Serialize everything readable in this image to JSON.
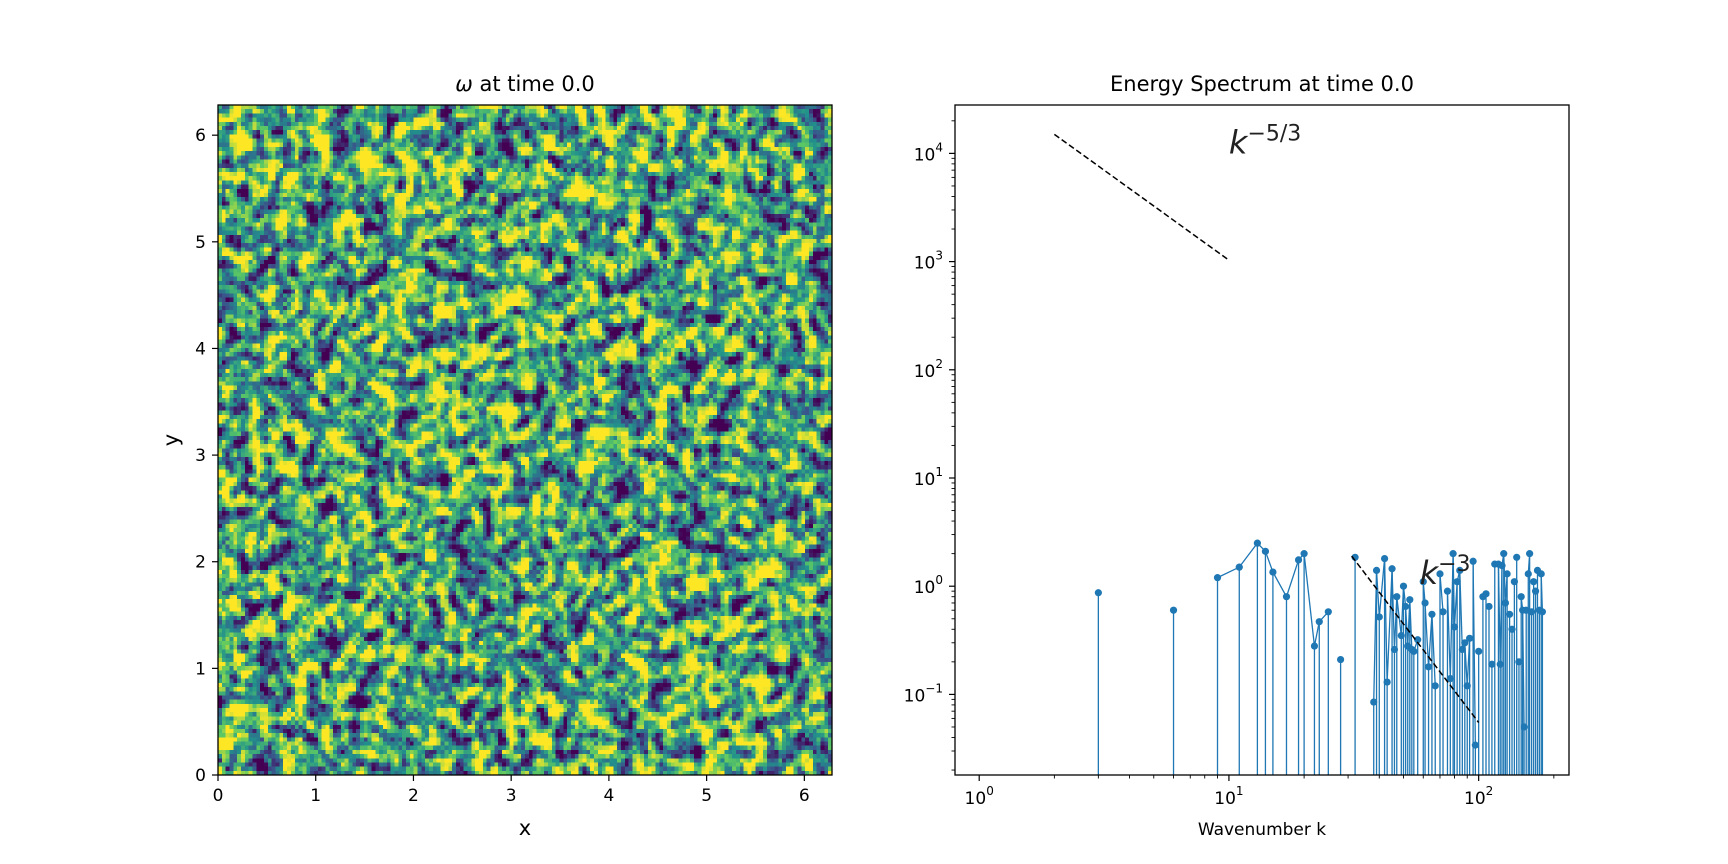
{
  "colors": {
    "series": "#1f77b4",
    "reference_line": "#000000",
    "viridis_low": "#3b528b",
    "viridis_mid": "#21918c",
    "viridis_high": "#c8e020"
  },
  "chart_data": [
    {
      "type": "heatmap",
      "title_symbol": "ω",
      "title_rest": " at time 0.0",
      "xlabel": "x",
      "ylabel": "y",
      "xlim": [
        0,
        6.283
      ],
      "ylim": [
        0,
        6.283
      ],
      "xticks": [
        0,
        1,
        2,
        3,
        4,
        5,
        6
      ],
      "yticks": [
        0,
        1,
        2,
        3,
        4,
        5,
        6
      ],
      "colormap": "viridis",
      "grid": false
    },
    {
      "type": "line",
      "title": "Energy Spectrum at time 0.0",
      "xlabel": "Wavenumber k",
      "ylabel": "",
      "xscale": "log",
      "yscale": "log",
      "xlim": [
        0.8,
        230
      ],
      "ylim": [
        0.018,
        28000
      ],
      "xticks": [
        {
          "base": "10",
          "exp": "0",
          "value": 1
        },
        {
          "base": "10",
          "exp": "1",
          "value": 10
        },
        {
          "base": "10",
          "exp": "2",
          "value": 100
        }
      ],
      "yticks": [
        {
          "base": "10",
          "exp": "−1",
          "value": 0.1
        },
        {
          "base": "10",
          "exp": "0",
          "value": 1
        },
        {
          "base": "10",
          "exp": "1",
          "value": 10
        },
        {
          "base": "10",
          "exp": "2",
          "value": 100
        },
        {
          "base": "10",
          "exp": "3",
          "value": 1000
        },
        {
          "base": "10",
          "exp": "4",
          "value": 10000
        }
      ],
      "grid": false,
      "series": [
        {
          "points": [
            [
              3,
              0.87
            ],
            [
              6,
              0.6
            ],
            [
              9,
              1.2
            ],
            [
              11,
              1.5
            ],
            [
              13,
              2.5
            ],
            [
              14,
              2.1
            ],
            [
              15,
              1.35
            ],
            [
              17,
              0.8
            ],
            [
              19,
              1.75
            ],
            [
              20,
              2.0
            ],
            [
              22,
              0.28
            ],
            [
              23,
              0.47
            ],
            [
              25,
              0.58
            ],
            [
              28,
              0.21
            ],
            [
              32,
              1.85
            ],
            [
              38,
              0.085
            ],
            [
              39,
              1.4
            ],
            [
              40,
              0.52
            ],
            [
              42,
              1.8
            ],
            [
              43,
              0.13
            ],
            [
              45,
              1.45
            ],
            [
              46,
              0.26
            ],
            [
              47,
              0.8
            ],
            [
              49,
              0.35
            ],
            [
              50,
              1.0
            ],
            [
              51,
              0.65
            ],
            [
              52,
              0.28
            ],
            [
              53,
              0.75
            ],
            [
              54,
              0.26
            ],
            [
              55,
              0.25
            ],
            [
              57,
              0.32
            ],
            [
              60,
              1.1
            ],
            [
              61,
              0.7
            ],
            [
              63,
              0.18
            ],
            [
              65,
              0.55
            ],
            [
              67,
              0.12
            ],
            [
              70,
              1.3
            ],
            [
              72,
              0.58
            ],
            [
              75,
              0.9
            ],
            [
              77,
              0.14
            ],
            [
              79,
              2.0
            ],
            [
              80,
              0.42
            ],
            [
              82,
              1.1
            ],
            [
              84,
              1.4
            ],
            [
              86,
              0.26
            ],
            [
              88,
              0.3
            ],
            [
              90,
              0.12
            ],
            [
              92,
              0.33
            ],
            [
              95,
              1.7
            ],
            [
              97,
              0.034
            ],
            [
              100,
              0.25
            ],
            [
              104,
              0.8
            ],
            [
              107,
              0.85
            ],
            [
              110,
              0.65
            ],
            [
              113,
              0.19
            ],
            [
              116,
              1.6
            ],
            [
              120,
              1.6
            ],
            [
              122,
              0.19
            ],
            [
              124,
              1.55
            ],
            [
              126,
              2.0
            ],
            [
              128,
              0.7
            ],
            [
              130,
              1.3
            ],
            [
              133,
              0.55
            ],
            [
              136,
              0.4
            ],
            [
              139,
              1.1
            ],
            [
              142,
              1.85
            ],
            [
              145,
              0.2
            ],
            [
              148,
              0.8
            ],
            [
              150,
              0.6
            ],
            [
              152,
              0.05
            ],
            [
              155,
              0.6
            ],
            [
              158,
              1.3
            ],
            [
              160,
              2.0
            ],
            [
              163,
              0.58
            ],
            [
              166,
              1.1
            ],
            [
              169,
              0.9
            ],
            [
              172,
              1.4
            ],
            [
              175,
              0.6
            ],
            [
              178,
              1.3
            ],
            [
              180,
              0.58
            ]
          ]
        }
      ],
      "reference_lines": [
        {
          "k_range": [
            2,
            10
          ],
          "E_range": [
            15000,
            1030
          ],
          "label": "k",
          "label_sup": "−5/3",
          "label_pos": [
            10,
            10000
          ]
        },
        {
          "k_range": [
            31,
            100
          ],
          "E_range": [
            1.9,
            0.055
          ],
          "label": "k",
          "label_sup": "−3",
          "label_pos": [
            58,
            1.05
          ]
        }
      ]
    }
  ]
}
